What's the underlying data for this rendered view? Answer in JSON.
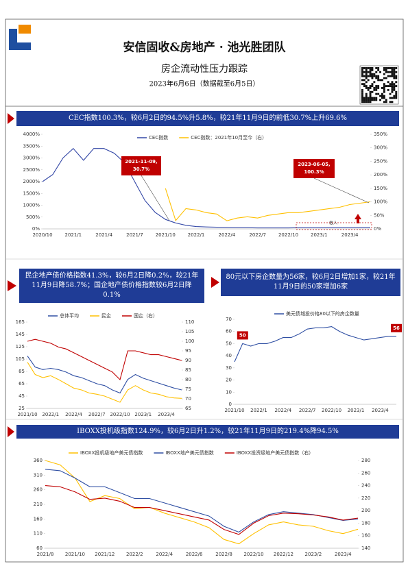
{
  "header": {
    "title": "安信固收&房地产 · 池光胜团队",
    "subtitle": "房企流动性压力跟踪",
    "date": "2023年6月6日（数据截至6月5日）"
  },
  "chart_data": [
    {
      "type": "line",
      "title": "CEC指数100.3%，较6月2日的94.5%升5.8%，较21年11月9日的前低30.7%上升69.6%",
      "categories": [
        "2020/10",
        null,
        null,
        "2021/1",
        null,
        null,
        "2021/4",
        null,
        null,
        "2021/7",
        null,
        null,
        "2021/10",
        null,
        null,
        "2022/1",
        null,
        null,
        "2022/4",
        null,
        null,
        "2022/7",
        null,
        null,
        "2022/10",
        null,
        null,
        "2023/1",
        null,
        null,
        "2023/4",
        null,
        null
      ],
      "series": [
        {
          "name": "CEC指数",
          "color": "#3347a6",
          "values": [
            2000,
            2300,
            3000,
            3400,
            2900,
            3400,
            3400,
            3200,
            2800,
            2000,
            1200,
            700,
            400,
            250,
            150,
            100,
            80,
            70,
            60,
            50,
            50,
            40,
            40,
            40,
            40,
            50,
            50,
            50,
            60,
            60,
            60,
            60,
            70
          ]
        },
        {
          "name": "CEC指数：2021年10月至今（右）",
          "color": "#ffc000",
          "axis": "y2",
          "values": [
            null,
            null,
            null,
            null,
            null,
            null,
            null,
            null,
            null,
            null,
            null,
            null,
            150,
            30.7,
            75,
            70,
            60,
            55,
            30,
            40,
            45,
            40,
            50,
            55,
            60,
            60,
            65,
            70,
            75,
            80,
            90,
            95,
            100.3
          ]
        }
      ],
      "ylim": [
        0,
        4000
      ],
      "yticks": [
        {
          "value": 0,
          "label": "0%"
        },
        {
          "value": 500,
          "label": "500%"
        },
        {
          "value": 1000,
          "label": "1000%"
        },
        {
          "value": 1500,
          "label": "1500%"
        },
        {
          "value": 2000,
          "label": "2000%"
        },
        {
          "value": 2500,
          "label": "2500%"
        },
        {
          "value": 3000,
          "label": "3000%"
        },
        {
          "value": 3500,
          "label": "3500%"
        },
        {
          "value": 4000,
          "label": "4000%"
        }
      ],
      "y2lim": [
        0,
        350
      ],
      "y2ticks": [
        {
          "value": 0,
          "label": "0%"
        },
        {
          "value": 50,
          "label": "50%"
        },
        {
          "value": 100,
          "label": "100%"
        },
        {
          "value": 150,
          "label": "150%"
        },
        {
          "value": 200,
          "label": "200%"
        },
        {
          "value": 250,
          "label": "250%"
        },
        {
          "value": 300,
          "label": "300%"
        },
        {
          "value": 350,
          "label": "350%"
        }
      ],
      "legend": "top",
      "annotations": [
        {
          "lines": [
            "2021-11-09,",
            "30.7%"
          ]
        },
        {
          "lines": [
            "2023-06-05,",
            "100.3%"
          ]
        },
        {
          "lines": [
            "救人"
          ]
        }
      ]
    },
    {
      "type": "line",
      "title": "民企地产债价格指数41.3%，较6月2日降0.2%，较21年11月9日降58.7%；国企地产债价格指数较6月2日降0.1%",
      "categories": [
        "2021/10",
        null,
        null,
        "2022/1",
        null,
        null,
        "2022/4",
        null,
        null,
        "2022/7",
        null,
        null,
        "2022/10",
        null,
        null,
        "2023/1",
        null,
        null,
        "2023/4",
        null,
        null
      ],
      "series": [
        {
          "name": "总体平均",
          "color": "#2f4fa3",
          "values": [
            110,
            92,
            88,
            90,
            88,
            84,
            78,
            75,
            70,
            65,
            62,
            55,
            50,
            72,
            80,
            74,
            70,
            66,
            62,
            58,
            55
          ]
        },
        {
          "name": "民企",
          "color": "#ffc000",
          "values": [
            100,
            80,
            75,
            78,
            72,
            65,
            58,
            55,
            50,
            48,
            45,
            40,
            35,
            55,
            62,
            55,
            50,
            48,
            44,
            42,
            41.3
          ]
        },
        {
          "name": "国企（右）",
          "color": "#c00000",
          "axis": "y2",
          "values": [
            100,
            101,
            100,
            99,
            97,
            96,
            94,
            92,
            90,
            88,
            86,
            84,
            80,
            95,
            95,
            94,
            93,
            93,
            92,
            91,
            90
          ]
        }
      ],
      "ylim": [
        25,
        165
      ],
      "yticks": [
        25,
        45,
        65,
        85,
        105,
        125,
        145,
        165
      ],
      "y2lim": [
        65,
        110
      ],
      "y2ticks": [
        65,
        70,
        75,
        80,
        85,
        90,
        95,
        100,
        105,
        110
      ],
      "legend": "top"
    },
    {
      "type": "line",
      "title": "80元以下房企数量为56家，较6月2日增加1家，较21年11月9日的50家增加6家",
      "categories": [
        "2021/10",
        null,
        null,
        "2022/1",
        null,
        null,
        "2022/4",
        null,
        null,
        "2022/7",
        null,
        null,
        "2022/10",
        null,
        null,
        "2023/1",
        null,
        null,
        "2023/4",
        null,
        null
      ],
      "series": [
        {
          "name": "美元债城投价格80以下的房企数量",
          "color": "#2f4fa3",
          "values": [
            35,
            50,
            48,
            50,
            50,
            52,
            55,
            55,
            58,
            62,
            63,
            63,
            64,
            60,
            57,
            55,
            53,
            54,
            55,
            56,
            56
          ],
          "value_labels": [
            null,
            "50",
            null,
            null,
            null,
            null,
            null,
            null,
            null,
            null,
            null,
            null,
            null,
            null,
            null,
            null,
            null,
            null,
            null,
            null,
            "56"
          ]
        }
      ],
      "ylim": [
        0,
        70
      ],
      "yticks": [
        0,
        10,
        20,
        30,
        40,
        50,
        60,
        70
      ],
      "legend": "top"
    },
    {
      "type": "line",
      "title": "IBOXX投机级指数124.9%，较6月2日升1.2%，较21年11月9日的219.4%降94.5%",
      "categories": [
        "2021/8",
        null,
        "2021/10",
        null,
        "2021/12",
        null,
        "2022/2",
        null,
        "2022/4",
        null,
        "2022/6",
        null,
        "2022/8",
        null,
        "2022/10",
        null,
        "2022/12",
        null,
        "2023/2",
        null,
        "2023/4",
        null
      ],
      "series": [
        {
          "name": "IBOXX投机级地产美元债指数",
          "color": "#ffc000",
          "values": [
            360,
            345,
            300,
            219.4,
            240,
            230,
            195,
            200,
            180,
            165,
            150,
            130,
            90,
            75,
            110,
            140,
            150,
            140,
            135,
            120,
            110,
            124.9
          ]
        },
        {
          "name": "IBOXX地产美元债指数",
          "color": "#2f4fa3",
          "values": [
            330,
            325,
            300,
            270,
            270,
            250,
            230,
            230,
            215,
            200,
            185,
            170,
            135,
            115,
            150,
            175,
            185,
            180,
            175,
            165,
            155,
            160
          ]
        },
        {
          "name": "IBOXX投资级地产美元债指数（右）",
          "color": "#c00000",
          "axis": "y2",
          "values": [
            240,
            238,
            230,
            218,
            220,
            215,
            205,
            205,
            200,
            195,
            190,
            185,
            170,
            162,
            180,
            192,
            196,
            195,
            193,
            190,
            185,
            188
          ]
        }
      ],
      "ylim": [
        60,
        360
      ],
      "yticks": [
        60,
        110,
        160,
        210,
        260,
        310,
        360
      ],
      "y2lim": [
        140,
        280
      ],
      "y2ticks": [
        140,
        160,
        180,
        200,
        220,
        240,
        260,
        280
      ],
      "legend": "top"
    }
  ]
}
